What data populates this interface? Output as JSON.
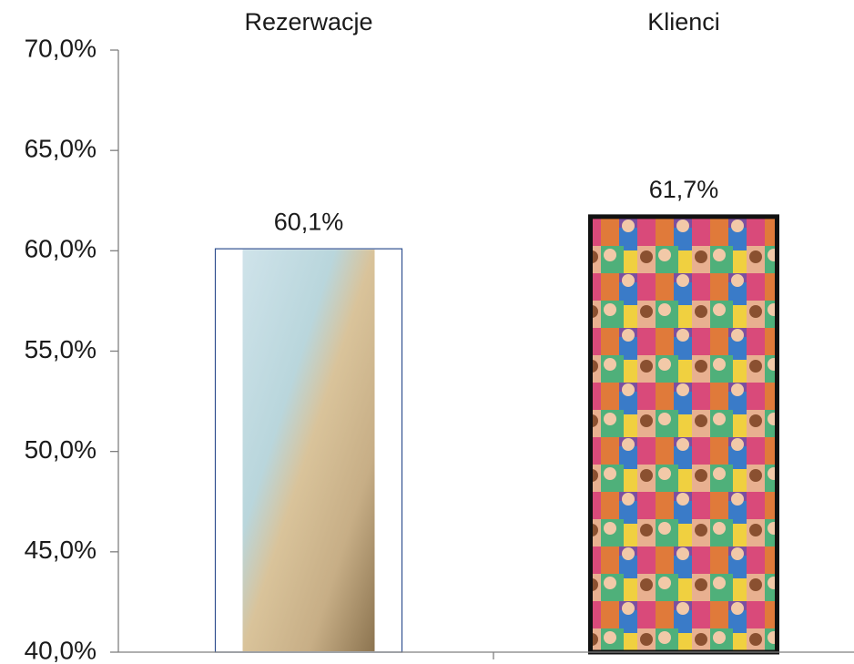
{
  "chart_data": {
    "type": "bar",
    "categories": [
      "Rezerwacje",
      "Klienci"
    ],
    "values": [
      60.1,
      61.7
    ],
    "value_labels": [
      "60,1%",
      "61,7%"
    ],
    "ylim": [
      40,
      70
    ],
    "yticks": [
      {
        "value": 40,
        "label": "40,0%"
      },
      {
        "value": 45,
        "label": "45,0%"
      },
      {
        "value": 50,
        "label": "50,0%"
      },
      {
        "value": 55,
        "label": "55,0%"
      },
      {
        "value": 60,
        "label": "60,0%"
      },
      {
        "value": 65,
        "label": "65,0%"
      },
      {
        "value": 70,
        "label": "70,0%"
      }
    ]
  }
}
